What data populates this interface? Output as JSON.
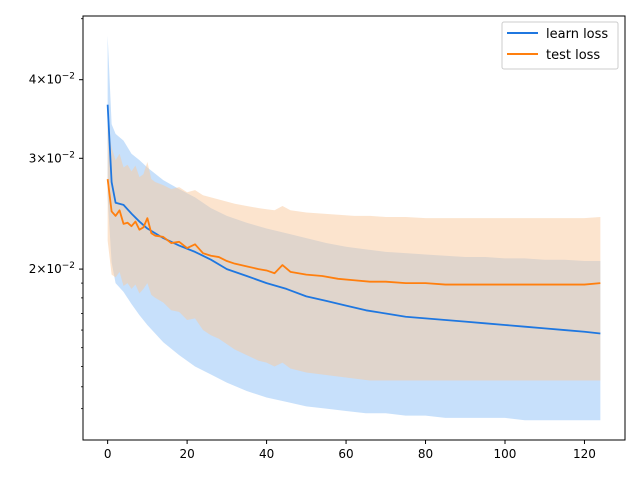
{
  "chart_data": {
    "type": "line",
    "title": "",
    "xlabel": "",
    "ylabel": "",
    "yscale": "log",
    "xlim": [
      -6.2,
      130.2
    ],
    "ylim": [
      0.0107,
      0.0505
    ],
    "grid": false,
    "legend_position": "top-right",
    "x_ticks": [
      0,
      20,
      40,
      60,
      80,
      100,
      120
    ],
    "x_tick_labels": [
      "0",
      "20",
      "40",
      "60",
      "80",
      "100",
      "120"
    ],
    "y_ticks": [
      0.02,
      0.03,
      0.04
    ],
    "y_tick_labels": [
      {
        "base": "2×10",
        "exp": "−2"
      },
      {
        "base": "3×10",
        "exp": "−2"
      },
      {
        "base": "4×10",
        "exp": "−2"
      }
    ],
    "series": [
      {
        "name": "learn loss",
        "color": "#1f77e0",
        "band_color": "#8fc2f7",
        "x": [
          0,
          1,
          2,
          4,
          6,
          8,
          10,
          14,
          18,
          22,
          26,
          30,
          35,
          40,
          45,
          50,
          55,
          60,
          65,
          70,
          75,
          80,
          85,
          90,
          95,
          100,
          105,
          110,
          115,
          120,
          124
        ],
        "mean": [
          0.0365,
          0.0275,
          0.0255,
          0.0253,
          0.0245,
          0.0238,
          0.0232,
          0.0224,
          0.0218,
          0.0213,
          0.0207,
          0.02,
          0.0195,
          0.019,
          0.0186,
          0.0181,
          0.0178,
          0.0175,
          0.0172,
          0.017,
          0.0168,
          0.0167,
          0.0166,
          0.0165,
          0.0164,
          0.0163,
          0.0162,
          0.0161,
          0.016,
          0.0159,
          0.0158
        ],
        "upper": [
          0.047,
          0.034,
          0.0328,
          0.032,
          0.0305,
          0.0298,
          0.029,
          0.0277,
          0.0268,
          0.026,
          0.025,
          0.0243,
          0.0237,
          0.0232,
          0.0228,
          0.0224,
          0.022,
          0.0217,
          0.0215,
          0.0213,
          0.0212,
          0.0211,
          0.021,
          0.0209,
          0.0209,
          0.0208,
          0.0208,
          0.0207,
          0.0207,
          0.0206,
          0.0206
        ],
        "lower": [
          0.026,
          0.0205,
          0.019,
          0.0184,
          0.0176,
          0.0169,
          0.0163,
          0.0153,
          0.0146,
          0.014,
          0.0136,
          0.0132,
          0.0128,
          0.0125,
          0.0123,
          0.0121,
          0.012,
          0.0119,
          0.0118,
          0.0118,
          0.0117,
          0.0117,
          0.0116,
          0.0116,
          0.0116,
          0.0116,
          0.0115,
          0.0115,
          0.0115,
          0.0115,
          0.0115
        ]
      },
      {
        "name": "test loss",
        "color": "#ff7f0e",
        "band_color": "#f9c99e",
        "x": [
          0,
          1,
          2,
          3,
          4,
          5,
          6,
          7,
          8,
          9,
          10,
          11,
          12,
          14,
          16,
          18,
          20,
          22,
          24,
          26,
          28,
          30,
          32,
          35,
          38,
          40,
          42,
          44,
          46,
          48,
          50,
          54,
          58,
          62,
          66,
          70,
          75,
          80,
          85,
          90,
          95,
          100,
          105,
          110,
          115,
          120,
          124
        ],
        "mean": [
          0.0278,
          0.0247,
          0.0243,
          0.0248,
          0.0236,
          0.0237,
          0.0234,
          0.0238,
          0.0231,
          0.0233,
          0.0241,
          0.0228,
          0.0226,
          0.0225,
          0.022,
          0.0221,
          0.0216,
          0.0219,
          0.0212,
          0.021,
          0.0209,
          0.0206,
          0.0204,
          0.0202,
          0.02,
          0.0199,
          0.0197,
          0.0203,
          0.0198,
          0.0197,
          0.0196,
          0.0195,
          0.0193,
          0.0192,
          0.0191,
          0.0191,
          0.019,
          0.019,
          0.0189,
          0.0189,
          0.0189,
          0.0189,
          0.0189,
          0.0189,
          0.0189,
          0.0189,
          0.019
        ],
        "upper": [
          0.034,
          0.0312,
          0.0298,
          0.0305,
          0.029,
          0.0293,
          0.0286,
          0.0292,
          0.028,
          0.0283,
          0.0296,
          0.0278,
          0.0275,
          0.0272,
          0.0268,
          0.027,
          0.0265,
          0.0267,
          0.0262,
          0.026,
          0.0258,
          0.0256,
          0.0254,
          0.0252,
          0.025,
          0.0249,
          0.0248,
          0.0252,
          0.0248,
          0.0247,
          0.0246,
          0.0245,
          0.0244,
          0.0243,
          0.0243,
          0.0242,
          0.0242,
          0.0241,
          0.0241,
          0.0241,
          0.0241,
          0.0241,
          0.0241,
          0.0241,
          0.0241,
          0.0241,
          0.0242
        ],
        "lower": [
          0.0222,
          0.0196,
          0.0194,
          0.0198,
          0.0188,
          0.019,
          0.0186,
          0.0189,
          0.0183,
          0.0186,
          0.019,
          0.0182,
          0.018,
          0.0177,
          0.0172,
          0.0171,
          0.0166,
          0.0167,
          0.016,
          0.0157,
          0.0155,
          0.0152,
          0.0149,
          0.0146,
          0.0143,
          0.0142,
          0.014,
          0.0142,
          0.0139,
          0.0138,
          0.0137,
          0.0136,
          0.0135,
          0.0134,
          0.0133,
          0.0133,
          0.0133,
          0.0133,
          0.0133,
          0.0133,
          0.0133,
          0.0133,
          0.0133,
          0.0133,
          0.0133,
          0.0133,
          0.0133
        ]
      }
    ]
  }
}
